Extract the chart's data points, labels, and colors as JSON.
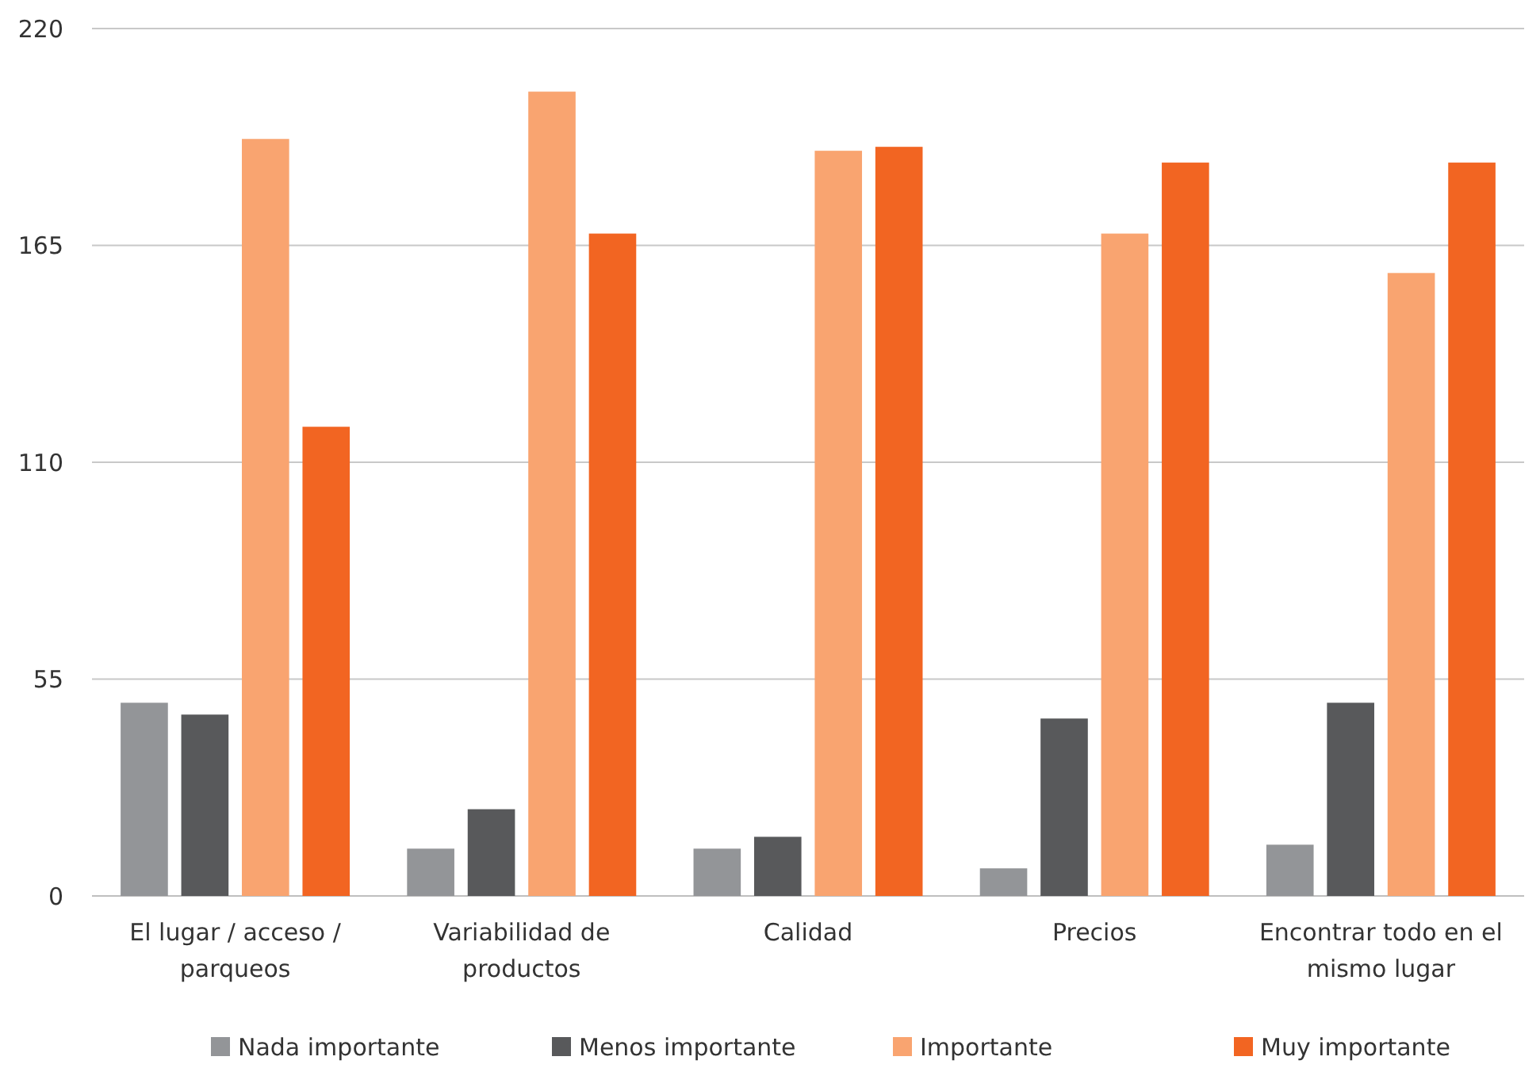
{
  "chart_data": {
    "type": "bar",
    "categories": [
      "El lugar / acceso / parqueos",
      "Variabilidad de productos",
      "Calidad",
      "Precios",
      "Encontrar todo en el mismo lugar"
    ],
    "series": [
      {
        "name": "Nada importante",
        "color": "#939598",
        "values": [
          49,
          12,
          12,
          7,
          13
        ]
      },
      {
        "name": "Menos importante",
        "color": "#58595b",
        "values": [
          46,
          22,
          15,
          45,
          49
        ]
      },
      {
        "name": "Importante",
        "color": "#f9a470",
        "values": [
          192,
          204,
          189,
          168,
          158
        ]
      },
      {
        "name": "Muy importante",
        "color": "#f26522",
        "values": [
          119,
          168,
          190,
          186,
          186
        ]
      }
    ],
    "ylim": [
      0,
      220
    ],
    "yticks": [
      0,
      55,
      110,
      165,
      220
    ],
    "grid": "y",
    "legend": "bottom"
  }
}
